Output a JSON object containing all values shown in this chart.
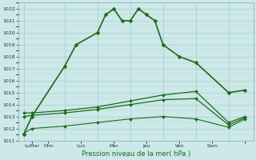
{
  "background_color": "#cce8e8",
  "grid_color": "#aacccc",
  "line_color": "#1a6b1a",
  "xlabel": "Pression niveau de la mer( hPa )",
  "ylim": [
    1011,
    1022.5
  ],
  "yticks": [
    1011,
    1012,
    1013,
    1014,
    1015,
    1016,
    1017,
    1018,
    1019,
    1020,
    1021,
    1022
  ],
  "xlim": [
    -0.3,
    14.0
  ],
  "x_positions": [
    0.5,
    1.5,
    3.5,
    5.5,
    7.5,
    9.5,
    11.5,
    13.5
  ],
  "x_labels": [
    "LuMar",
    "Dim",
    "Lun",
    "Mer",
    "Jeu",
    "Ven",
    "Sam",
    ""
  ],
  "vline_positions": [
    0,
    2.5,
    4.5,
    6.5,
    8.5,
    10.5,
    12.5,
    14.0
  ],
  "s1_x": [
    0,
    0.5,
    2.5,
    3.2,
    4.5,
    5.0,
    5.5,
    6.0,
    6.5,
    7.0,
    7.5,
    8.0,
    8.5,
    9.5,
    10.5,
    12.5,
    13.5
  ],
  "s1_y": [
    1011.5,
    1013.0,
    1017.2,
    1019.0,
    1020.0,
    1021.5,
    1022.0,
    1021.0,
    1021.0,
    1022.0,
    1021.5,
    1021.0,
    1019.0,
    1018.0,
    1017.5,
    1015.0,
    1015.2
  ],
  "s2_x": [
    0,
    0.5,
    2.5,
    4.5,
    6.5,
    8.5,
    10.5,
    12.5,
    13.5
  ],
  "s2_y": [
    1013.3,
    1013.3,
    1013.5,
    1013.8,
    1014.3,
    1014.8,
    1015.1,
    1012.5,
    1013.0
  ],
  "s3_x": [
    0,
    0.5,
    2.5,
    4.5,
    6.5,
    8.5,
    10.5,
    12.5,
    13.5
  ],
  "s3_y": [
    1013.0,
    1013.1,
    1013.3,
    1013.6,
    1014.0,
    1014.4,
    1014.5,
    1012.3,
    1012.9
  ],
  "s4_x": [
    0,
    0.5,
    2.5,
    4.5,
    6.5,
    8.5,
    10.5,
    12.5,
    13.5
  ],
  "s4_y": [
    1011.6,
    1012.0,
    1012.2,
    1012.5,
    1012.8,
    1013.0,
    1012.8,
    1012.1,
    1012.8
  ]
}
